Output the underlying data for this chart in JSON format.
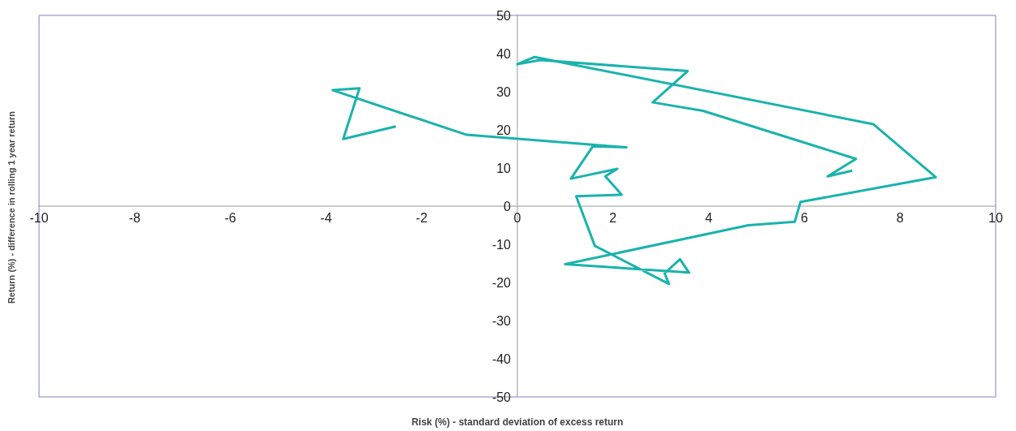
{
  "chart_data": {
    "type": "line",
    "xlabel": "Risk (%) - standard deviation of excess return",
    "ylabel": "Return (%) - difference in rolling 1 year  return",
    "x": [
      -2.54,
      -3.64,
      -3.3,
      -3.86,
      -1.06,
      2.28,
      1.58,
      1.12,
      2.09,
      1.84,
      2.18,
      1.23,
      1.62,
      3.17,
      3.08,
      3.4,
      3.59,
      1.0,
      4.83,
      5.8,
      5.92,
      8.75,
      7.44,
      0.36,
      0.0,
      0.48,
      3.56,
      2.83,
      3.88,
      7.08,
      6.49,
      7.0
    ],
    "series": [
      {
        "color": "#1ab3ac",
        "values": [
          20.9,
          17.6,
          30.9,
          30.4,
          18.7,
          15.4,
          15.7,
          7.2,
          9.8,
          7.8,
          3.0,
          2.6,
          -10.4,
          -20.4,
          -17.6,
          -13.9,
          -17.4,
          -15.2,
          -5.0,
          -4.1,
          1.1,
          7.6,
          21.5,
          39.1,
          37.2,
          38.3,
          35.4,
          27.2,
          25.0,
          12.4,
          7.8,
          9.3
        ]
      }
    ],
    "xlim": [
      -10,
      10
    ],
    "ylim": [
      -50,
      50
    ],
    "xticks": [
      -10,
      -8,
      -6,
      -4,
      -2,
      0,
      2,
      4,
      6,
      8,
      10
    ],
    "yticks": [
      -50,
      -40,
      -30,
      -20,
      -10,
      0,
      10,
      20,
      30,
      40,
      50
    ]
  }
}
